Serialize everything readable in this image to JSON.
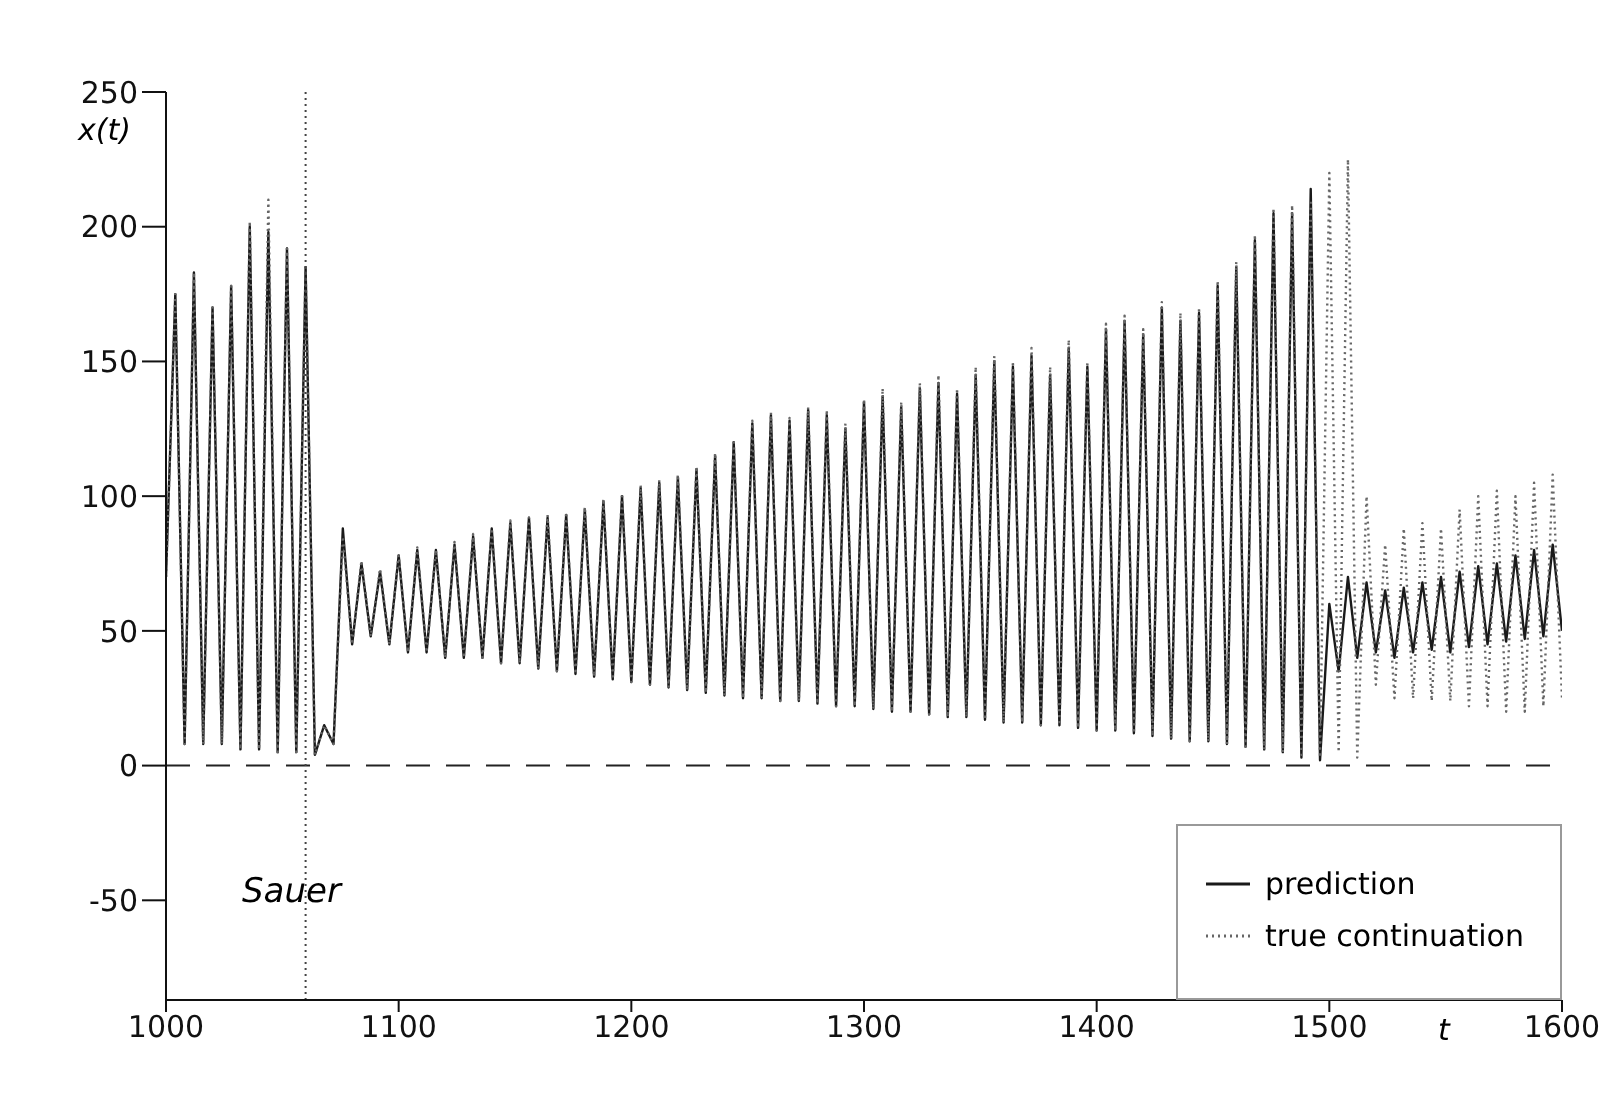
{
  "chart_data": {
    "type": "line",
    "xlabel": "t",
    "ylabel": "x(t)",
    "annotations": [
      "Sauer"
    ],
    "x": [
      1000,
      1004,
      1008,
      1012,
      1016,
      1020,
      1024,
      1028,
      1032,
      1036,
      1040,
      1044,
      1048,
      1052,
      1056,
      1060,
      1064,
      1068,
      1072,
      1076,
      1080,
      1084,
      1088,
      1092,
      1096,
      1100,
      1104,
      1108,
      1112,
      1116,
      1120,
      1124,
      1128,
      1132,
      1136,
      1140,
      1144,
      1148,
      1152,
      1156,
      1160,
      1164,
      1168,
      1172,
      1176,
      1180,
      1184,
      1188,
      1192,
      1196,
      1200,
      1204,
      1208,
      1212,
      1216,
      1220,
      1224,
      1228,
      1232,
      1236,
      1240,
      1244,
      1248,
      1252,
      1256,
      1260,
      1264,
      1268,
      1272,
      1276,
      1280,
      1284,
      1288,
      1292,
      1296,
      1300,
      1304,
      1308,
      1312,
      1316,
      1320,
      1324,
      1328,
      1332,
      1336,
      1340,
      1344,
      1348,
      1352,
      1356,
      1360,
      1364,
      1368,
      1372,
      1376,
      1380,
      1384,
      1388,
      1392,
      1396,
      1400,
      1404,
      1408,
      1412,
      1416,
      1420,
      1424,
      1428,
      1432,
      1436,
      1440,
      1444,
      1448,
      1452,
      1456,
      1460,
      1464,
      1468,
      1472,
      1476,
      1480,
      1484,
      1488,
      1492,
      1496,
      1500,
      1504,
      1508,
      1512,
      1516,
      1520,
      1524,
      1528,
      1532,
      1536,
      1540,
      1544,
      1548,
      1552,
      1556,
      1560,
      1564,
      1568,
      1572,
      1576,
      1580,
      1584,
      1588,
      1592,
      1596,
      1600
    ],
    "series": [
      {
        "name": "prediction",
        "color": "#1a1a1a",
        "line_style": "solid",
        "values": [
          70,
          175,
          8,
          183,
          8,
          170,
          8,
          178,
          6,
          200,
          6,
          198,
          5,
          192,
          5,
          185,
          4,
          15,
          8,
          88,
          45,
          75,
          48,
          72,
          45,
          78,
          42,
          80,
          42,
          80,
          40,
          82,
          40,
          85,
          40,
          88,
          38,
          90,
          38,
          92,
          36,
          92,
          35,
          93,
          34,
          95,
          33,
          98,
          32,
          100,
          31,
          103,
          30,
          105,
          29,
          107,
          28,
          110,
          27,
          115,
          26,
          120,
          25,
          127,
          25,
          130,
          24,
          128,
          24,
          132,
          23,
          130,
          22,
          125,
          22,
          135,
          21,
          137,
          20,
          133,
          20,
          140,
          19,
          142,
          18,
          138,
          18,
          145,
          17,
          150,
          16,
          148,
          16,
          152,
          15,
          145,
          15,
          155,
          14,
          148,
          13,
          162,
          13,
          165,
          12,
          160,
          11,
          170,
          10,
          165,
          9,
          168,
          9,
          178,
          8,
          185,
          7,
          195,
          6,
          205,
          5,
          205,
          3,
          214,
          2,
          60,
          35,
          70,
          40,
          68,
          42,
          65,
          40,
          66,
          42,
          68,
          43,
          70,
          42,
          72,
          44,
          74,
          45,
          75,
          46,
          78,
          47,
          80,
          48,
          82,
          50
        ]
      },
      {
        "name": "true continuation",
        "color": "#666666",
        "line_style": "dotted",
        "values": [
          70,
          175,
          8,
          183,
          8,
          170,
          8,
          178,
          6,
          202,
          6,
          210,
          5,
          192,
          5,
          185,
          4,
          15,
          8,
          85,
          45,
          76,
          48,
          73,
          45,
          78,
          42,
          81,
          42,
          80,
          40,
          83,
          40,
          86,
          40,
          88,
          38,
          91,
          38,
          92,
          36,
          93,
          35,
          94,
          34,
          96,
          33,
          99,
          32,
          101,
          31,
          104,
          30,
          106,
          29,
          108,
          28,
          111,
          27,
          116,
          26,
          121,
          25,
          128,
          25,
          131,
          24,
          129,
          24,
          133,
          23,
          132,
          22,
          127,
          22,
          136,
          21,
          140,
          20,
          135,
          20,
          142,
          19,
          145,
          18,
          140,
          18,
          148,
          17,
          152,
          16,
          150,
          16,
          155,
          15,
          148,
          15,
          158,
          14,
          150,
          13,
          164,
          13,
          167,
          12,
          162,
          11,
          172,
          10,
          168,
          9,
          170,
          9,
          180,
          8,
          187,
          7,
          197,
          6,
          207,
          5,
          208,
          4,
          210,
          3,
          220,
          5,
          225,
          3,
          100,
          30,
          82,
          25,
          88,
          25,
          90,
          24,
          88,
          24,
          95,
          22,
          100,
          22,
          102,
          20,
          100,
          20,
          105,
          22,
          108,
          25
        ]
      }
    ],
    "xlim": [
      1000,
      1600
    ],
    "xticks": [
      1000,
      1100,
      1200,
      1300,
      1400,
      1500,
      1600
    ],
    "ylim": [
      -87,
      250
    ],
    "yticks": [
      -50,
      0,
      50,
      100,
      150,
      200,
      250
    ],
    "ref_lines": [
      {
        "axis": "y",
        "value": 0,
        "line_style": "dashed",
        "color": "#222222"
      },
      {
        "axis": "x",
        "value": 1060,
        "line_style": "dotted",
        "color": "#444444"
      }
    ],
    "legend": "bottom right",
    "grid": false
  }
}
